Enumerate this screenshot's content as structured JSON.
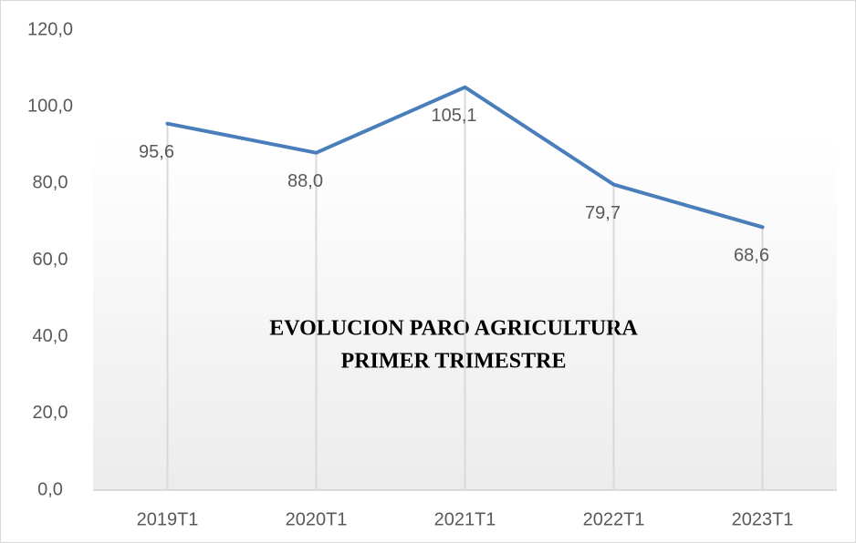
{
  "chart_data": {
    "type": "line",
    "title": [
      "EVOLUCION PARO AGRICULTURA",
      "PRIMER TRIMESTRE"
    ],
    "categories": [
      "2019T1",
      "2020T1",
      "2021T1",
      "2022T1",
      "2023T1"
    ],
    "values": [
      95.6,
      88.0,
      105.1,
      79.7,
      68.6
    ],
    "value_labels": [
      "95,6",
      "88,0",
      "105,1",
      "79,7",
      "68,6"
    ],
    "color": "#4a7ebb",
    "ylim": [
      0,
      120
    ],
    "yticks": [
      {
        "value": 0,
        "label": "0,0"
      },
      {
        "value": 20,
        "label": "20,0"
      },
      {
        "value": 40,
        "label": "40,0"
      },
      {
        "value": 60,
        "label": "60,0"
      },
      {
        "value": 80,
        "label": "80,0"
      },
      {
        "value": 100,
        "label": "100,0"
      },
      {
        "value": 120,
        "label": "120,0"
      }
    ],
    "grid": false
  }
}
